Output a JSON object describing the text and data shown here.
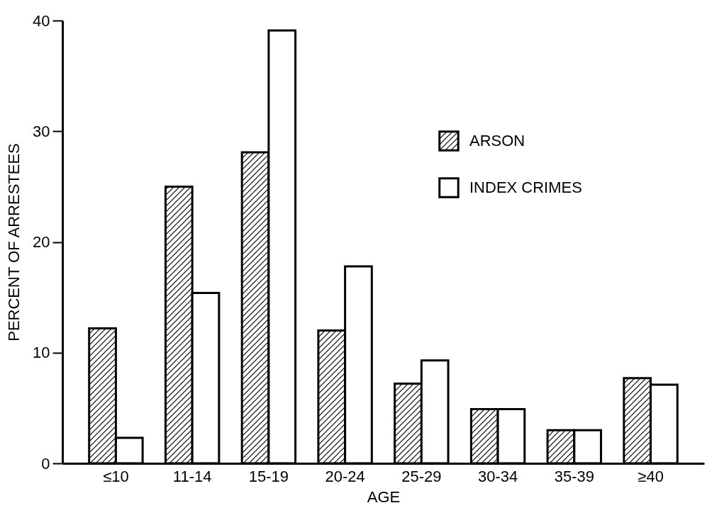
{
  "chart_data": {
    "type": "bar",
    "xlabel": "AGE",
    "ylabel": "PERCENT OF ARRESTEES",
    "categories": [
      "≤10",
      "11-14",
      "15-19",
      "20-24",
      "25-29",
      "30-34",
      "35-39",
      "≥40"
    ],
    "series": [
      {
        "name": "ARSON",
        "color": "#000000",
        "values": [
          12.2,
          25,
          28.1,
          12,
          7.2,
          4.9,
          3,
          7.7
        ]
      },
      {
        "name": "INDEX CRIMES",
        "color": "#ffffff",
        "values": [
          2.3,
          15.4,
          39.1,
          17.8,
          9.3,
          4.9,
          3,
          7.1
        ]
      }
    ],
    "ylim": [
      0,
      40
    ],
    "yticks": [
      0,
      10,
      20,
      30,
      40
    ],
    "grid": false,
    "legend": "top right"
  }
}
